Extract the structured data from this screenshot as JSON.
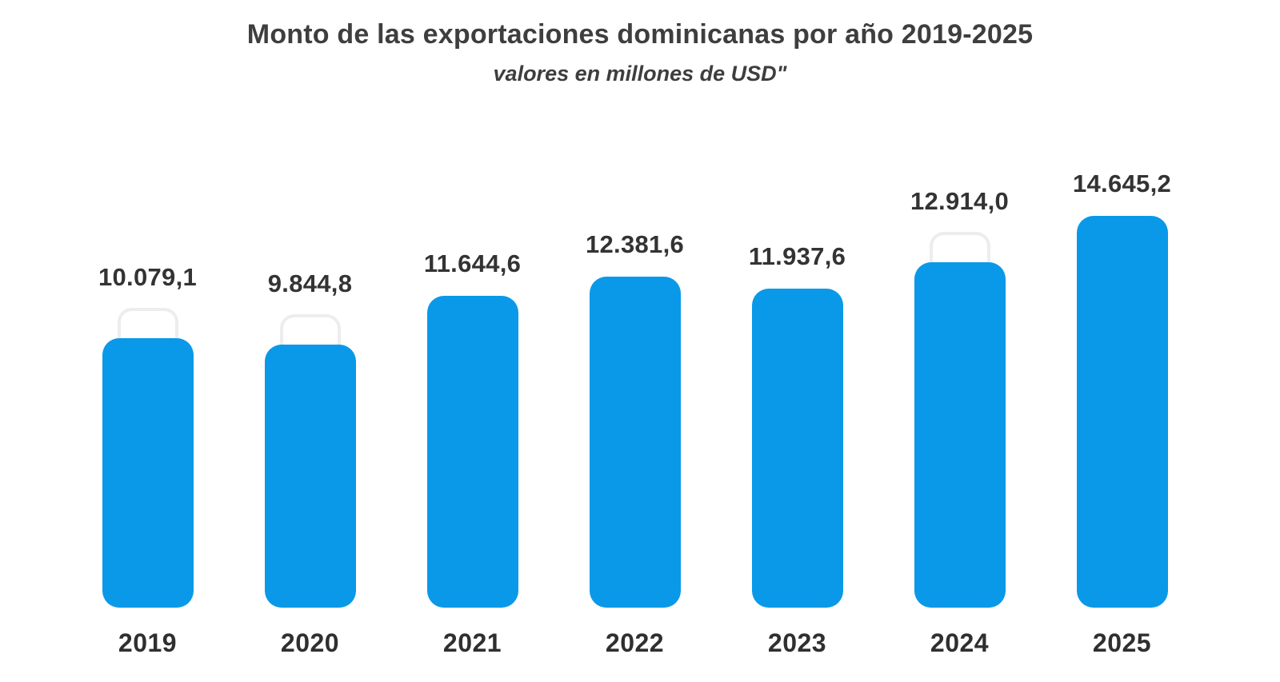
{
  "chart_data": {
    "type": "bar",
    "title": "Monto de las exportaciones dominicanas por año 2019-2025",
    "subtitle": "valores en millones de USD\"",
    "xlabel": "",
    "ylabel": "",
    "categories": [
      "2019",
      "2020",
      "2021",
      "2022",
      "2023",
      "2024",
      "2025"
    ],
    "values": [
      10079.1,
      9844.8,
      11644.6,
      12381.6,
      11937.6,
      12914.0,
      14645.2
    ],
    "value_labels": [
      "10.079,1",
      "9.844,8",
      "11.644,6",
      "12.381,6",
      "11.937,6",
      "12.914,0",
      "14.645,2"
    ],
    "ghost_outline_behind_bar": [
      true,
      true,
      false,
      false,
      false,
      true,
      false
    ],
    "bar_color": "#0a99e8",
    "ghost_color": "#ededed",
    "text_color": "#3e3e3e",
    "ylim": [
      0,
      15000
    ],
    "grid": false,
    "legend": false,
    "axis_lines": false
  }
}
